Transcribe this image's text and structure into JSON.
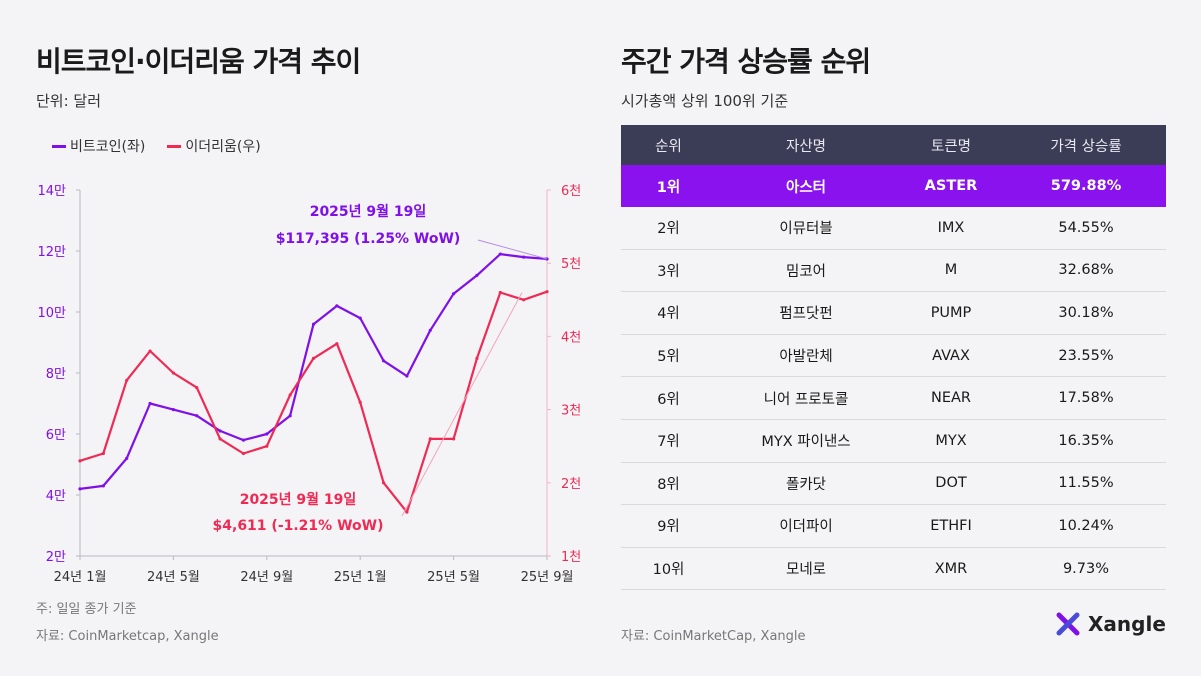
{
  "left_panel": {
    "title": "비트코인·이더리움 가격 추이",
    "unit": "단위: 달러",
    "legend": [
      "비트코인(좌)",
      "이더리움(우)"
    ],
    "footnote": "주: 일일 종가 기준",
    "source": "자료: CoinMarketcap, Xangle"
  },
  "right_panel": {
    "title": "주간 가격 상승률 순위",
    "subtitle": "시가총액 상위 100위 기준",
    "source": "자료: CoinMarketCap, Xangle"
  },
  "brand": {
    "name": "Xangle"
  },
  "colors": {
    "btc": "#7f10e8",
    "eth": "#ee2a55",
    "header_bg": "#3b3c56",
    "highlight": "#8a12ee"
  },
  "chart_data": {
    "type": "line",
    "title": "비트코인·이더리움 가격 추이",
    "x_tick_labels": [
      "24년 1월",
      "24년 5월",
      "24년 9월",
      "25년 1월",
      "25년 5월",
      "25년 9월"
    ],
    "x": [
      0,
      1,
      2,
      3,
      4,
      5,
      6,
      7,
      8,
      9,
      10,
      11,
      12,
      13,
      14,
      15,
      16,
      17,
      18,
      19,
      20
    ],
    "y_left": {
      "label": "비트코인(좌)",
      "range": [
        20000,
        140000
      ],
      "tick_labels": [
        "2만",
        "4만",
        "6만",
        "8만",
        "10만",
        "12만",
        "14만"
      ]
    },
    "y_right": {
      "label": "이더리움(우)",
      "range": [
        1000,
        6000
      ],
      "tick_labels": [
        "1천",
        "2천",
        "3천",
        "4천",
        "5천",
        "6천"
      ]
    },
    "series": [
      {
        "name": "비트코인(좌)",
        "axis": "left",
        "values": [
          42000,
          43000,
          52000,
          70000,
          68000,
          66000,
          61000,
          58000,
          60000,
          66000,
          96000,
          102000,
          98000,
          84000,
          79000,
          94000,
          106000,
          112000,
          119000,
          118000,
          117395
        ]
      },
      {
        "name": "이더리움(우)",
        "axis": "right",
        "values": [
          2300,
          2400,
          3400,
          3800,
          3500,
          3300,
          2600,
          2400,
          2500,
          3200,
          3700,
          3900,
          3100,
          2000,
          1600,
          2600,
          2600,
          3700,
          4600,
          4500,
          4611
        ]
      }
    ],
    "annotations": [
      {
        "series": "비트코인(좌)",
        "date": "2025년 9월 19일",
        "text": "$117,395 (1.25% WoW)"
      },
      {
        "series": "이더리움(우)",
        "date": "2025년 9월 19일",
        "text": "$4,611 (-1.21% WoW)"
      }
    ]
  },
  "table": {
    "headers": [
      "순위",
      "자산명",
      "토큰명",
      "가격 상승률"
    ],
    "rows": [
      {
        "rank": "1위",
        "name": "아스터",
        "token": "ASTER",
        "change": "579.88%"
      },
      {
        "rank": "2위",
        "name": "이뮤터블",
        "token": "IMX",
        "change": "54.55%"
      },
      {
        "rank": "3위",
        "name": "밈코어",
        "token": "M",
        "change": "32.68%"
      },
      {
        "rank": "4위",
        "name": "펌프닷펀",
        "token": "PUMP",
        "change": "30.18%"
      },
      {
        "rank": "5위",
        "name": "아발란체",
        "token": "AVAX",
        "change": "23.55%"
      },
      {
        "rank": "6위",
        "name": "니어 프로토콜",
        "token": "NEAR",
        "change": "17.58%"
      },
      {
        "rank": "7위",
        "name": "MYX 파이낸스",
        "token": "MYX",
        "change": "16.35%"
      },
      {
        "rank": "8위",
        "name": "폴카닷",
        "token": "DOT",
        "change": "11.55%"
      },
      {
        "rank": "9위",
        "name": "이더파이",
        "token": "ETHFI",
        "change": "10.24%"
      },
      {
        "rank": "10위",
        "name": "모네로",
        "token": "XMR",
        "change": "9.73%"
      }
    ]
  }
}
